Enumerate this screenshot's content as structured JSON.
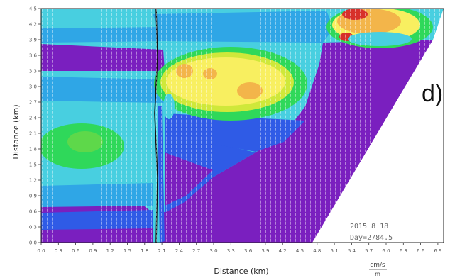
{
  "chart_data": {
    "type": "heatmap",
    "title": "",
    "panel_label": "d)",
    "xlabel": "Distance (km)",
    "ylabel": "Distance (km)",
    "xlim": [
      0,
      7
    ],
    "ylim": [
      0,
      4.5
    ],
    "x_ticks": [
      "0.0",
      "0.3",
      "0.6",
      "0.9",
      "1.2",
      "1.5",
      "1.8",
      "2.1",
      "2.4",
      "2.7",
      "3.0",
      "3.3",
      "3.6",
      "3.9",
      "4.2",
      "4.5",
      "4.8",
      "5.1",
      "5.4",
      "5.7",
      "6.0",
      "6.3",
      "6.6",
      "6.9"
    ],
    "y_ticks": [
      "0.0",
      "0.3",
      "0.6",
      "0.9",
      "1.2",
      "1.5",
      "1.8",
      "2.1",
      "2.4",
      "2.7",
      "3.0",
      "3.3",
      "3.6",
      "3.9",
      "4.2",
      "4.5"
    ],
    "date_text": "2015 8 18",
    "day_text": "Day=2784.5",
    "unit_numerator": "cm/s",
    "unit_denominator": "m",
    "colormap": [
      "#7a1fbf",
      "#2f5be6",
      "#2fa6e6",
      "#48cfe0",
      "#2fd85a",
      "#cfe83a",
      "#f8ef60",
      "#f3b54a",
      "#e77a3a",
      "#d7302a"
    ],
    "grid": "dense vector overlay",
    "legend": "none"
  }
}
